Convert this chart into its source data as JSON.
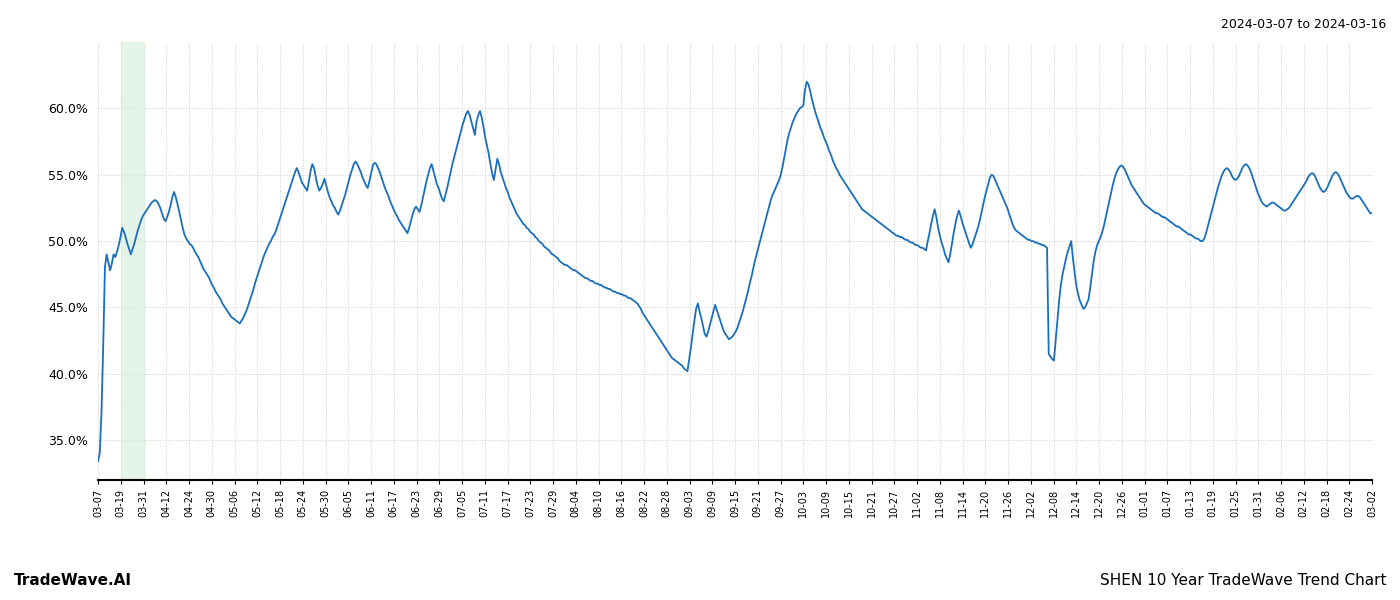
{
  "title_right": "2024-03-07 to 2024-03-16",
  "bottom_left": "TradeWave.AI",
  "bottom_right": "SHEN 10 Year TradeWave Trend Chart",
  "line_color": "#1a6fba",
  "line_width": 1.3,
  "highlight_color": "#d4edda",
  "highlight_alpha": 0.6,
  "background_color": "#ffffff",
  "grid_color": "#cccccc",
  "grid_style": ":",
  "ylim": [
    0.32,
    0.65
  ],
  "yticks": [
    0.35,
    0.4,
    0.45,
    0.5,
    0.55,
    0.6
  ],
  "xtick_labels": [
    "03-07",
    "03-19",
    "03-31",
    "04-12",
    "04-24",
    "04-30",
    "05-06",
    "05-12",
    "05-18",
    "05-24",
    "05-30",
    "06-05",
    "06-11",
    "06-17",
    "06-23",
    "06-29",
    "07-05",
    "07-11",
    "07-17",
    "07-23",
    "07-29",
    "08-04",
    "08-10",
    "08-16",
    "08-22",
    "08-28",
    "09-03",
    "09-09",
    "09-15",
    "09-21",
    "09-27",
    "10-03",
    "10-09",
    "10-15",
    "10-21",
    "10-27",
    "11-02",
    "11-08",
    "11-14",
    "11-20",
    "11-26",
    "12-02",
    "12-08",
    "12-14",
    "12-20",
    "12-26",
    "01-01",
    "01-07",
    "01-13",
    "01-19",
    "01-25",
    "01-31",
    "02-06",
    "02-12",
    "02-18",
    "02-24",
    "03-02"
  ],
  "n_ticks": 57,
  "highlight_xstart_idx": 1,
  "highlight_xend_idx": 2,
  "y_values": [
    0.334,
    0.34,
    0.37,
    0.42,
    0.48,
    0.49,
    0.484,
    0.478,
    0.483,
    0.49,
    0.488,
    0.492,
    0.497,
    0.503,
    0.51,
    0.507,
    0.503,
    0.498,
    0.494,
    0.49,
    0.494,
    0.498,
    0.503,
    0.508,
    0.512,
    0.516,
    0.519,
    0.521,
    0.523,
    0.525,
    0.527,
    0.529,
    0.53,
    0.531,
    0.53,
    0.528,
    0.525,
    0.521,
    0.517,
    0.515,
    0.518,
    0.522,
    0.527,
    0.533,
    0.537,
    0.533,
    0.528,
    0.522,
    0.516,
    0.51,
    0.505,
    0.502,
    0.5,
    0.498,
    0.497,
    0.495,
    0.492,
    0.49,
    0.488,
    0.485,
    0.482,
    0.479,
    0.477,
    0.475,
    0.473,
    0.47,
    0.467,
    0.465,
    0.462,
    0.46,
    0.458,
    0.456,
    0.453,
    0.451,
    0.449,
    0.447,
    0.445,
    0.443,
    0.442,
    0.441,
    0.44,
    0.439,
    0.438,
    0.44,
    0.442,
    0.445,
    0.448,
    0.452,
    0.456,
    0.46,
    0.464,
    0.469,
    0.473,
    0.477,
    0.481,
    0.485,
    0.489,
    0.492,
    0.495,
    0.498,
    0.5,
    0.503,
    0.505,
    0.508,
    0.512,
    0.516,
    0.52,
    0.524,
    0.528,
    0.532,
    0.536,
    0.54,
    0.544,
    0.548,
    0.552,
    0.555,
    0.552,
    0.548,
    0.544,
    0.542,
    0.54,
    0.538,
    0.545,
    0.553,
    0.558,
    0.555,
    0.548,
    0.542,
    0.538,
    0.54,
    0.543,
    0.547,
    0.542,
    0.537,
    0.533,
    0.53,
    0.527,
    0.525,
    0.522,
    0.52,
    0.523,
    0.527,
    0.531,
    0.535,
    0.54,
    0.545,
    0.55,
    0.554,
    0.558,
    0.56,
    0.558,
    0.555,
    0.552,
    0.548,
    0.545,
    0.542,
    0.54,
    0.545,
    0.551,
    0.557,
    0.559,
    0.558,
    0.555,
    0.552,
    0.548,
    0.544,
    0.54,
    0.537,
    0.534,
    0.53,
    0.527,
    0.524,
    0.521,
    0.519,
    0.516,
    0.514,
    0.512,
    0.51,
    0.508,
    0.506,
    0.51,
    0.515,
    0.52,
    0.524,
    0.526,
    0.524,
    0.522,
    0.527,
    0.533,
    0.539,
    0.545,
    0.55,
    0.555,
    0.558,
    0.553,
    0.548,
    0.543,
    0.54,
    0.536,
    0.532,
    0.53,
    0.535,
    0.54,
    0.546,
    0.552,
    0.558,
    0.563,
    0.568,
    0.573,
    0.578,
    0.583,
    0.588,
    0.592,
    0.596,
    0.598,
    0.595,
    0.59,
    0.585,
    0.58,
    0.59,
    0.595,
    0.598,
    0.593,
    0.586,
    0.578,
    0.572,
    0.566,
    0.558,
    0.551,
    0.546,
    0.554,
    0.562,
    0.558,
    0.552,
    0.548,
    0.544,
    0.54,
    0.537,
    0.533,
    0.53,
    0.527,
    0.524,
    0.521,
    0.519,
    0.517,
    0.515,
    0.513,
    0.512,
    0.51,
    0.509,
    0.507,
    0.506,
    0.505,
    0.503,
    0.502,
    0.5,
    0.499,
    0.498,
    0.496,
    0.495,
    0.494,
    0.493,
    0.491,
    0.49,
    0.489,
    0.488,
    0.487,
    0.485,
    0.484,
    0.483,
    0.482,
    0.482,
    0.481,
    0.48,
    0.479,
    0.478,
    0.478,
    0.477,
    0.476,
    0.475,
    0.474,
    0.473,
    0.472,
    0.472,
    0.471,
    0.47,
    0.47,
    0.469,
    0.468,
    0.468,
    0.467,
    0.467,
    0.466,
    0.465,
    0.465,
    0.464,
    0.464,
    0.463,
    0.462,
    0.462,
    0.461,
    0.461,
    0.46,
    0.46,
    0.459,
    0.459,
    0.458,
    0.457,
    0.457,
    0.456,
    0.455,
    0.454,
    0.453,
    0.451,
    0.449,
    0.446,
    0.444,
    0.442,
    0.44,
    0.438,
    0.436,
    0.434,
    0.432,
    0.43,
    0.428,
    0.426,
    0.424,
    0.422,
    0.42,
    0.418,
    0.416,
    0.414,
    0.412,
    0.411,
    0.41,
    0.409,
    0.408,
    0.407,
    0.406,
    0.404,
    0.403,
    0.402,
    0.411,
    0.42,
    0.43,
    0.44,
    0.449,
    0.453,
    0.447,
    0.442,
    0.436,
    0.43,
    0.428,
    0.432,
    0.437,
    0.442,
    0.447,
    0.452,
    0.448,
    0.444,
    0.44,
    0.436,
    0.432,
    0.43,
    0.428,
    0.426,
    0.427,
    0.428,
    0.43,
    0.432,
    0.435,
    0.439,
    0.443,
    0.447,
    0.452,
    0.457,
    0.462,
    0.468,
    0.473,
    0.479,
    0.485,
    0.49,
    0.495,
    0.5,
    0.505,
    0.51,
    0.515,
    0.52,
    0.525,
    0.53,
    0.534,
    0.537,
    0.54,
    0.543,
    0.546,
    0.55,
    0.556,
    0.563,
    0.57,
    0.577,
    0.582,
    0.586,
    0.59,
    0.593,
    0.596,
    0.598,
    0.6,
    0.601,
    0.602,
    0.614,
    0.62,
    0.618,
    0.613,
    0.607,
    0.602,
    0.597,
    0.593,
    0.589,
    0.585,
    0.582,
    0.578,
    0.575,
    0.572,
    0.568,
    0.565,
    0.561,
    0.558,
    0.555,
    0.553,
    0.55,
    0.548,
    0.546,
    0.544,
    0.542,
    0.54,
    0.538,
    0.536,
    0.534,
    0.532,
    0.53,
    0.528,
    0.526,
    0.524,
    0.523,
    0.522,
    0.521,
    0.52,
    0.519,
    0.518,
    0.517,
    0.516,
    0.515,
    0.514,
    0.513,
    0.512,
    0.511,
    0.51,
    0.509,
    0.508,
    0.507,
    0.506,
    0.505,
    0.504,
    0.504,
    0.503,
    0.503,
    0.502,
    0.501,
    0.501,
    0.5,
    0.499,
    0.499,
    0.498,
    0.497,
    0.497,
    0.496,
    0.495,
    0.495,
    0.494,
    0.493,
    0.5,
    0.506,
    0.513,
    0.519,
    0.524,
    0.518,
    0.51,
    0.504,
    0.499,
    0.495,
    0.49,
    0.487,
    0.484,
    0.49,
    0.498,
    0.506,
    0.513,
    0.519,
    0.523,
    0.519,
    0.514,
    0.51,
    0.506,
    0.502,
    0.498,
    0.495,
    0.498,
    0.502,
    0.506,
    0.51,
    0.515,
    0.521,
    0.527,
    0.533,
    0.538,
    0.543,
    0.548,
    0.55,
    0.549,
    0.546,
    0.543,
    0.54,
    0.537,
    0.534,
    0.531,
    0.528,
    0.525,
    0.521,
    0.517,
    0.513,
    0.51,
    0.508,
    0.507,
    0.506,
    0.505,
    0.504,
    0.503,
    0.502,
    0.501,
    0.501,
    0.5,
    0.5,
    0.499,
    0.499,
    0.498,
    0.498,
    0.497,
    0.497,
    0.496,
    0.495,
    0.415,
    0.413,
    0.411,
    0.41,
    0.425,
    0.44,
    0.455,
    0.467,
    0.475,
    0.481,
    0.487,
    0.492,
    0.496,
    0.5,
    0.487,
    0.476,
    0.466,
    0.46,
    0.455,
    0.452,
    0.449,
    0.45,
    0.453,
    0.456,
    0.465,
    0.475,
    0.485,
    0.492,
    0.497,
    0.5,
    0.503,
    0.507,
    0.512,
    0.518,
    0.524,
    0.53,
    0.536,
    0.542,
    0.547,
    0.551,
    0.554,
    0.556,
    0.557,
    0.556,
    0.554,
    0.551,
    0.548,
    0.545,
    0.542,
    0.54,
    0.538,
    0.536,
    0.534,
    0.532,
    0.53,
    0.528,
    0.527,
    0.526,
    0.525,
    0.524,
    0.523,
    0.522,
    0.521,
    0.521,
    0.52,
    0.519,
    0.518,
    0.518,
    0.517,
    0.516,
    0.515,
    0.514,
    0.513,
    0.512,
    0.511,
    0.511,
    0.51,
    0.509,
    0.508,
    0.507,
    0.506,
    0.505,
    0.505,
    0.504,
    0.503,
    0.502,
    0.502,
    0.501,
    0.5,
    0.5,
    0.502,
    0.506,
    0.511,
    0.516,
    0.521,
    0.526,
    0.531,
    0.536,
    0.541,
    0.545,
    0.549,
    0.552,
    0.554,
    0.555,
    0.554,
    0.552,
    0.549,
    0.547,
    0.546,
    0.547,
    0.549,
    0.552,
    0.555,
    0.557,
    0.558,
    0.557,
    0.555,
    0.552,
    0.548,
    0.544,
    0.54,
    0.536,
    0.533,
    0.53,
    0.528,
    0.527,
    0.526,
    0.527,
    0.528,
    0.529,
    0.529,
    0.528,
    0.527,
    0.526,
    0.525,
    0.524,
    0.523,
    0.523,
    0.524,
    0.525,
    0.527,
    0.529,
    0.531,
    0.533,
    0.535,
    0.537,
    0.539,
    0.541,
    0.543,
    0.545,
    0.548,
    0.55,
    0.551,
    0.551,
    0.549,
    0.546,
    0.543,
    0.54,
    0.538,
    0.537,
    0.538,
    0.54,
    0.543,
    0.546,
    0.549,
    0.551,
    0.552,
    0.551,
    0.549,
    0.546,
    0.543,
    0.54,
    0.537,
    0.535,
    0.533,
    0.532,
    0.532,
    0.533,
    0.534,
    0.534,
    0.533,
    0.531,
    0.529,
    0.527,
    0.525,
    0.523,
    0.521,
    0.521
  ]
}
